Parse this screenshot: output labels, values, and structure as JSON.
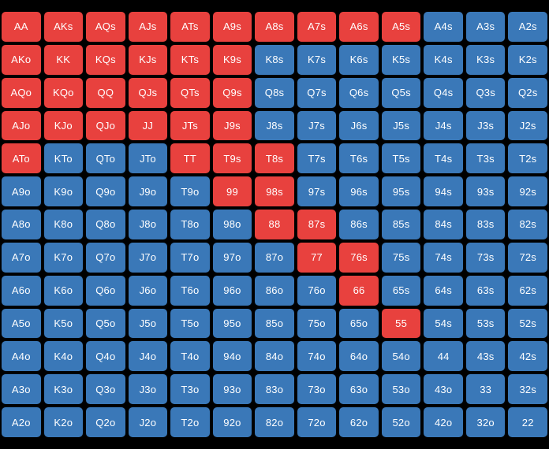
{
  "colors": {
    "raise": "#e8413e",
    "fold": "#3a78b8",
    "background": "#000000"
  },
  "rows": [
    [
      [
        "AA",
        "r"
      ],
      [
        "AKs",
        "r"
      ],
      [
        "AQs",
        "r"
      ],
      [
        "AJs",
        "r"
      ],
      [
        "ATs",
        "r"
      ],
      [
        "A9s",
        "r"
      ],
      [
        "A8s",
        "r"
      ],
      [
        "A7s",
        "r"
      ],
      [
        "A6s",
        "r"
      ],
      [
        "A5s",
        "r"
      ],
      [
        "A4s",
        "f"
      ],
      [
        "A3s",
        "f"
      ],
      [
        "A2s",
        "f"
      ]
    ],
    [
      [
        "AKo",
        "r"
      ],
      [
        "KK",
        "r"
      ],
      [
        "KQs",
        "r"
      ],
      [
        "KJs",
        "r"
      ],
      [
        "KTs",
        "r"
      ],
      [
        "K9s",
        "r"
      ],
      [
        "K8s",
        "f"
      ],
      [
        "K7s",
        "f"
      ],
      [
        "K6s",
        "f"
      ],
      [
        "K5s",
        "f"
      ],
      [
        "K4s",
        "f"
      ],
      [
        "K3s",
        "f"
      ],
      [
        "K2s",
        "f"
      ]
    ],
    [
      [
        "AQo",
        "r"
      ],
      [
        "KQo",
        "r"
      ],
      [
        "QQ",
        "r"
      ],
      [
        "QJs",
        "r"
      ],
      [
        "QTs",
        "r"
      ],
      [
        "Q9s",
        "r"
      ],
      [
        "Q8s",
        "f"
      ],
      [
        "Q7s",
        "f"
      ],
      [
        "Q6s",
        "f"
      ],
      [
        "Q5s",
        "f"
      ],
      [
        "Q4s",
        "f"
      ],
      [
        "Q3s",
        "f"
      ],
      [
        "Q2s",
        "f"
      ]
    ],
    [
      [
        "AJo",
        "r"
      ],
      [
        "KJo",
        "r"
      ],
      [
        "QJo",
        "r"
      ],
      [
        "JJ",
        "r"
      ],
      [
        "JTs",
        "r"
      ],
      [
        "J9s",
        "r"
      ],
      [
        "J8s",
        "f"
      ],
      [
        "J7s",
        "f"
      ],
      [
        "J6s",
        "f"
      ],
      [
        "J5s",
        "f"
      ],
      [
        "J4s",
        "f"
      ],
      [
        "J3s",
        "f"
      ],
      [
        "J2s",
        "f"
      ]
    ],
    [
      [
        "ATo",
        "r"
      ],
      [
        "KTo",
        "f"
      ],
      [
        "QTo",
        "f"
      ],
      [
        "JTo",
        "f"
      ],
      [
        "TT",
        "r"
      ],
      [
        "T9s",
        "r"
      ],
      [
        "T8s",
        "r"
      ],
      [
        "T7s",
        "f"
      ],
      [
        "T6s",
        "f"
      ],
      [
        "T5s",
        "f"
      ],
      [
        "T4s",
        "f"
      ],
      [
        "T3s",
        "f"
      ],
      [
        "T2s",
        "f"
      ]
    ],
    [
      [
        "A9o",
        "f"
      ],
      [
        "K9o",
        "f"
      ],
      [
        "Q9o",
        "f"
      ],
      [
        "J9o",
        "f"
      ],
      [
        "T9o",
        "f"
      ],
      [
        "99",
        "r"
      ],
      [
        "98s",
        "r"
      ],
      [
        "97s",
        "f"
      ],
      [
        "96s",
        "f"
      ],
      [
        "95s",
        "f"
      ],
      [
        "94s",
        "f"
      ],
      [
        "93s",
        "f"
      ],
      [
        "92s",
        "f"
      ]
    ],
    [
      [
        "A8o",
        "f"
      ],
      [
        "K8o",
        "f"
      ],
      [
        "Q8o",
        "f"
      ],
      [
        "J8o",
        "f"
      ],
      [
        "T8o",
        "f"
      ],
      [
        "98o",
        "f"
      ],
      [
        "88",
        "r"
      ],
      [
        "87s",
        "r"
      ],
      [
        "86s",
        "f"
      ],
      [
        "85s",
        "f"
      ],
      [
        "84s",
        "f"
      ],
      [
        "83s",
        "f"
      ],
      [
        "82s",
        "f"
      ]
    ],
    [
      [
        "A7o",
        "f"
      ],
      [
        "K7o",
        "f"
      ],
      [
        "Q7o",
        "f"
      ],
      [
        "J7o",
        "f"
      ],
      [
        "T7o",
        "f"
      ],
      [
        "97o",
        "f"
      ],
      [
        "87o",
        "f"
      ],
      [
        "77",
        "r"
      ],
      [
        "76s",
        "r"
      ],
      [
        "75s",
        "f"
      ],
      [
        "74s",
        "f"
      ],
      [
        "73s",
        "f"
      ],
      [
        "72s",
        "f"
      ]
    ],
    [
      [
        "A6o",
        "f"
      ],
      [
        "K6o",
        "f"
      ],
      [
        "Q6o",
        "f"
      ],
      [
        "J6o",
        "f"
      ],
      [
        "T6o",
        "f"
      ],
      [
        "96o",
        "f"
      ],
      [
        "86o",
        "f"
      ],
      [
        "76o",
        "f"
      ],
      [
        "66",
        "r"
      ],
      [
        "65s",
        "f"
      ],
      [
        "64s",
        "f"
      ],
      [
        "63s",
        "f"
      ],
      [
        "62s",
        "f"
      ]
    ],
    [
      [
        "A5o",
        "f"
      ],
      [
        "K5o",
        "f"
      ],
      [
        "Q5o",
        "f"
      ],
      [
        "J5o",
        "f"
      ],
      [
        "T5o",
        "f"
      ],
      [
        "95o",
        "f"
      ],
      [
        "85o",
        "f"
      ],
      [
        "75o",
        "f"
      ],
      [
        "65o",
        "f"
      ],
      [
        "55",
        "r"
      ],
      [
        "54s",
        "f"
      ],
      [
        "53s",
        "f"
      ],
      [
        "52s",
        "f"
      ]
    ],
    [
      [
        "A4o",
        "f"
      ],
      [
        "K4o",
        "f"
      ],
      [
        "Q4o",
        "f"
      ],
      [
        "J4o",
        "f"
      ],
      [
        "T4o",
        "f"
      ],
      [
        "94o",
        "f"
      ],
      [
        "84o",
        "f"
      ],
      [
        "74o",
        "f"
      ],
      [
        "64o",
        "f"
      ],
      [
        "54o",
        "f"
      ],
      [
        "44",
        "f"
      ],
      [
        "43s",
        "f"
      ],
      [
        "42s",
        "f"
      ]
    ],
    [
      [
        "A3o",
        "f"
      ],
      [
        "K3o",
        "f"
      ],
      [
        "Q3o",
        "f"
      ],
      [
        "J3o",
        "f"
      ],
      [
        "T3o",
        "f"
      ],
      [
        "93o",
        "f"
      ],
      [
        "83o",
        "f"
      ],
      [
        "73o",
        "f"
      ],
      [
        "63o",
        "f"
      ],
      [
        "53o",
        "f"
      ],
      [
        "43o",
        "f"
      ],
      [
        "33",
        "f"
      ],
      [
        "32s",
        "f"
      ]
    ],
    [
      [
        "A2o",
        "f"
      ],
      [
        "K2o",
        "f"
      ],
      [
        "Q2o",
        "f"
      ],
      [
        "J2o",
        "f"
      ],
      [
        "T2o",
        "f"
      ],
      [
        "92o",
        "f"
      ],
      [
        "82o",
        "f"
      ],
      [
        "72o",
        "f"
      ],
      [
        "62o",
        "f"
      ],
      [
        "52o",
        "f"
      ],
      [
        "42o",
        "f"
      ],
      [
        "32o",
        "f"
      ],
      [
        "22",
        "f"
      ]
    ]
  ]
}
